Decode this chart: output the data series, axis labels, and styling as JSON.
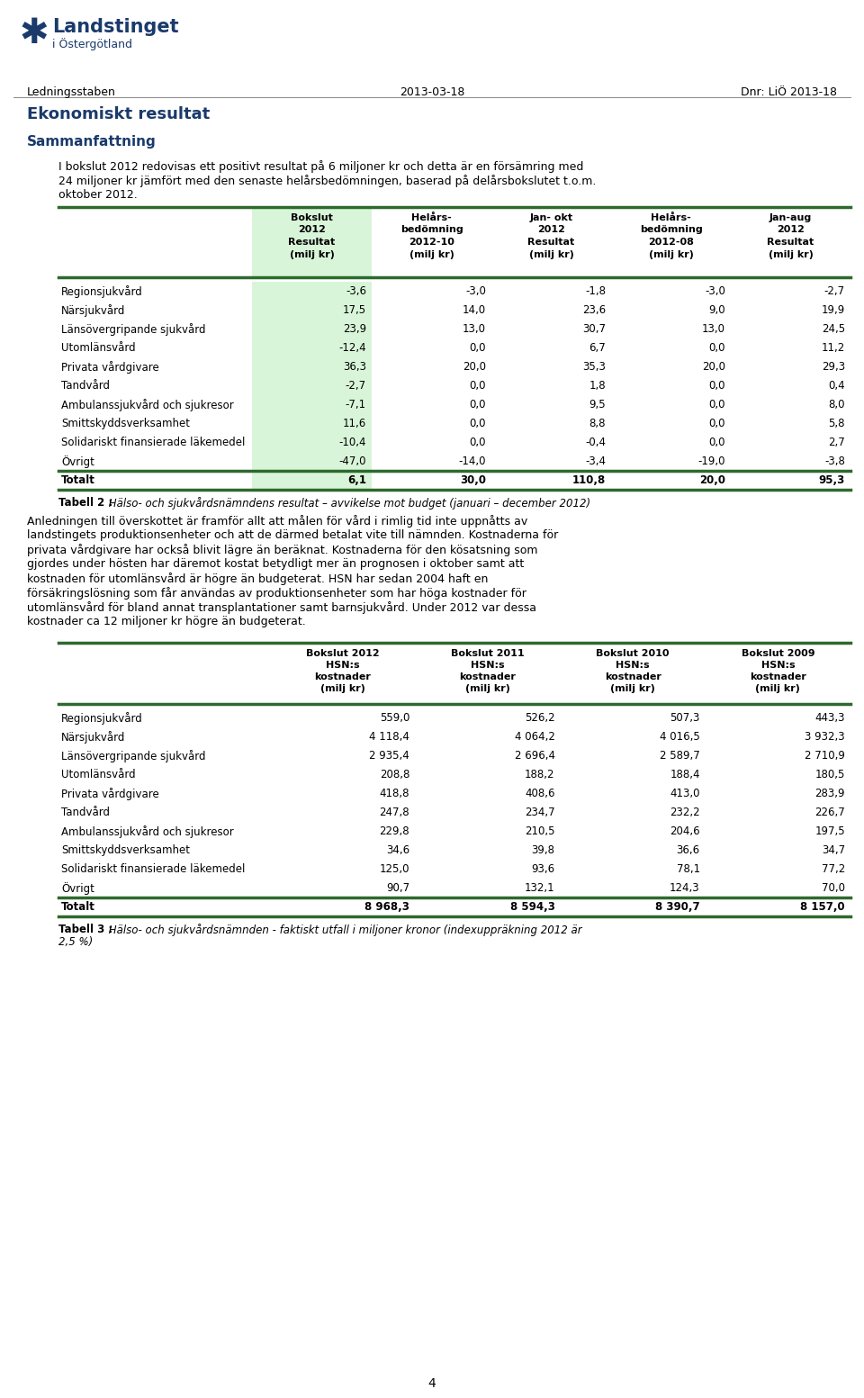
{
  "header_left": "Ledningsstaben",
  "header_center": "2013-03-18",
  "header_right": "Dnr: LiÖ 2013-18",
  "title": "Ekonomiskt resultat",
  "section1": "Sammanfattning",
  "body_text_line1": "I bokslut 2012 redovisas ett positivt resultat på 6 miljoner kr och detta är en försämring med",
  "body_text_line2": "24 miljoner kr jämfört med den senaste helårsbedömningen, baserad på delårsbokslutet t.o.m.",
  "body_text_line3": "oktober 2012.",
  "table1_col_headers": [
    "Bokslut\n2012\nResultat\n(milj kr)",
    "Helårs-\nbedömning\n2012-10\n(milj kr)",
    "Jan- okt\n2012\nResultat\n(milj kr)",
    "Helårs-\nbedömning\n2012-08\n(milj kr)",
    "Jan-aug\n2012\nResultat\n(milj kr)"
  ],
  "table1_rows": [
    [
      "Regionsjukvård",
      "-3,6",
      "-3,0",
      "-1,8",
      "-3,0",
      "-2,7"
    ],
    [
      "Närsjukvård",
      "17,5",
      "14,0",
      "23,6",
      "9,0",
      "19,9"
    ],
    [
      "Länsövergripande sjukvård",
      "23,9",
      "13,0",
      "30,7",
      "13,0",
      "24,5"
    ],
    [
      "Utomlänsvård",
      "-12,4",
      "0,0",
      "6,7",
      "0,0",
      "11,2"
    ],
    [
      "Privata vårdgivare",
      "36,3",
      "20,0",
      "35,3",
      "20,0",
      "29,3"
    ],
    [
      "Tandvård",
      "-2,7",
      "0,0",
      "1,8",
      "0,0",
      "0,4"
    ],
    [
      "Ambulanssjukvård och sjukresor",
      "-7,1",
      "0,0",
      "9,5",
      "0,0",
      "8,0"
    ],
    [
      "Smittskyddsverksamhet",
      "11,6",
      "0,0",
      "8,8",
      "0,0",
      "5,8"
    ],
    [
      "Solidariskt finansierade läkemedel",
      "-10,4",
      "0,0",
      "-0,4",
      "0,0",
      "2,7"
    ],
    [
      "Övrigt",
      "-47,0",
      "-14,0",
      "-3,4",
      "-19,0",
      "-3,8"
    ],
    [
      "Totalt",
      "6,1",
      "30,0",
      "110,8",
      "20,0",
      "95,3"
    ]
  ],
  "table1_caption_bold": "Tabell 2 :",
  "table1_caption_italic": " Hälso- och sjukvårdsnämndens resultat – avvikelse mot budget (januari – december 2012)",
  "middle_text_lines": [
    "Anledningen till överskottet är framför allt att målen för vård i rimlig tid inte uppnåtts av",
    "landstingets produktionsenheter och att de därmed betalat vite till nämnden. Kostnaderna för",
    "privata vårdgivare har också blivit lägre än beräknat. Kostnaderna för den kösatsning som",
    "gjordes under hösten har däremot kostat betydligt mer än prognosen i oktober samt att",
    "kostnaden för utomlänsvård är högre än budgeterat. HSN har sedan 2004 haft en",
    "försäkringslösning som får användas av produktionsenheter som har höga kostnader för",
    "utomlänsvård för bland annat transplantationer samt barnsjukvård. Under 2012 var dessa",
    "kostnader ca 12 miljoner kr högre än budgeterat."
  ],
  "table2_col_headers": [
    "Bokslut 2012\nHSN:s\nkostnader\n(milj kr)",
    "Bokslut 2011\nHSN:s\nkostnader\n(milj kr)",
    "Bokslut 2010\nHSN:s\nkostnader\n(milj kr)",
    "Bokslut 2009\nHSN:s\nkostnader\n(milj kr)"
  ],
  "table2_rows": [
    [
      "Regionsjukvård",
      "559,0",
      "526,2",
      "507,3",
      "443,3"
    ],
    [
      "Närsjukvård",
      "4 118,4",
      "4 064,2",
      "4 016,5",
      "3 932,3"
    ],
    [
      "Länsövergripande sjukvård",
      "2 935,4",
      "2 696,4",
      "2 589,7",
      "2 710,9"
    ],
    [
      "Utomlänsvård",
      "208,8",
      "188,2",
      "188,4",
      "180,5"
    ],
    [
      "Privata vårdgivare",
      "418,8",
      "408,6",
      "413,0",
      "283,9"
    ],
    [
      "Tandvård",
      "247,8",
      "234,7",
      "232,2",
      "226,7"
    ],
    [
      "Ambulanssjukvård och sjukresor",
      "229,8",
      "210,5",
      "204,6",
      "197,5"
    ],
    [
      "Smittskyddsverksamhet",
      "34,6",
      "39,8",
      "36,6",
      "34,7"
    ],
    [
      "Solidariskt finansierade läkemedel",
      "125,0",
      "93,6",
      "78,1",
      "77,2"
    ],
    [
      "Övrigt",
      "90,7",
      "132,1",
      "124,3",
      "70,0"
    ],
    [
      "Totalt",
      "8 968,3",
      "8 594,3",
      "8 390,7",
      "8 157,0"
    ]
  ],
  "table2_caption_bold": "Tabell 3 :",
  "table2_caption_italic": " Hälso- och sjukvårdsnämnden - faktiskt utfall i miljoner kronor (indexuppräkning 2012 är",
  "table2_caption_line2": "2,5 %)",
  "page_number": "4",
  "dark_blue": "#1a3a6b",
  "light_green_bg": "#d9f5d9",
  "dark_green_line": "#2d6a2d",
  "logo_text1": "Landstinget",
  "logo_text2": "i Östergötland"
}
